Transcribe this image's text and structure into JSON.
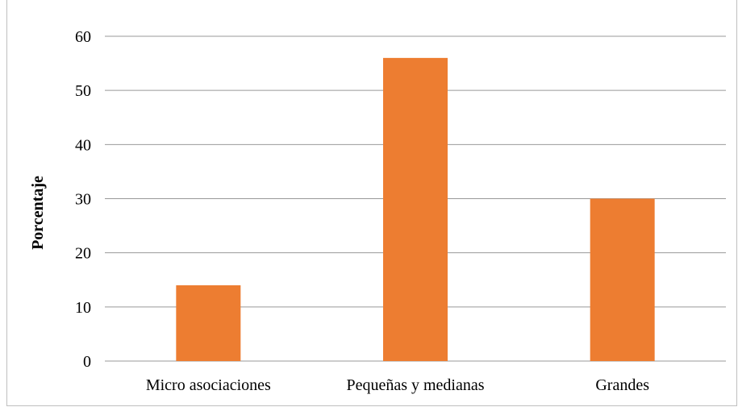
{
  "chart_data": {
    "type": "bar",
    "categories": [
      "Micro asociaciones",
      "Pequeñas y medianas",
      "Grandes"
    ],
    "values": [
      14,
      56,
      30
    ],
    "ylabel": "Porcentaje",
    "xlabel": "",
    "ylim": [
      0,
      60
    ],
    "yticks": [
      0,
      10,
      20,
      30,
      40,
      50,
      60
    ],
    "grid": true,
    "legend": "none",
    "bar_color": "#ED7D31",
    "gridline_color": "#999999"
  }
}
